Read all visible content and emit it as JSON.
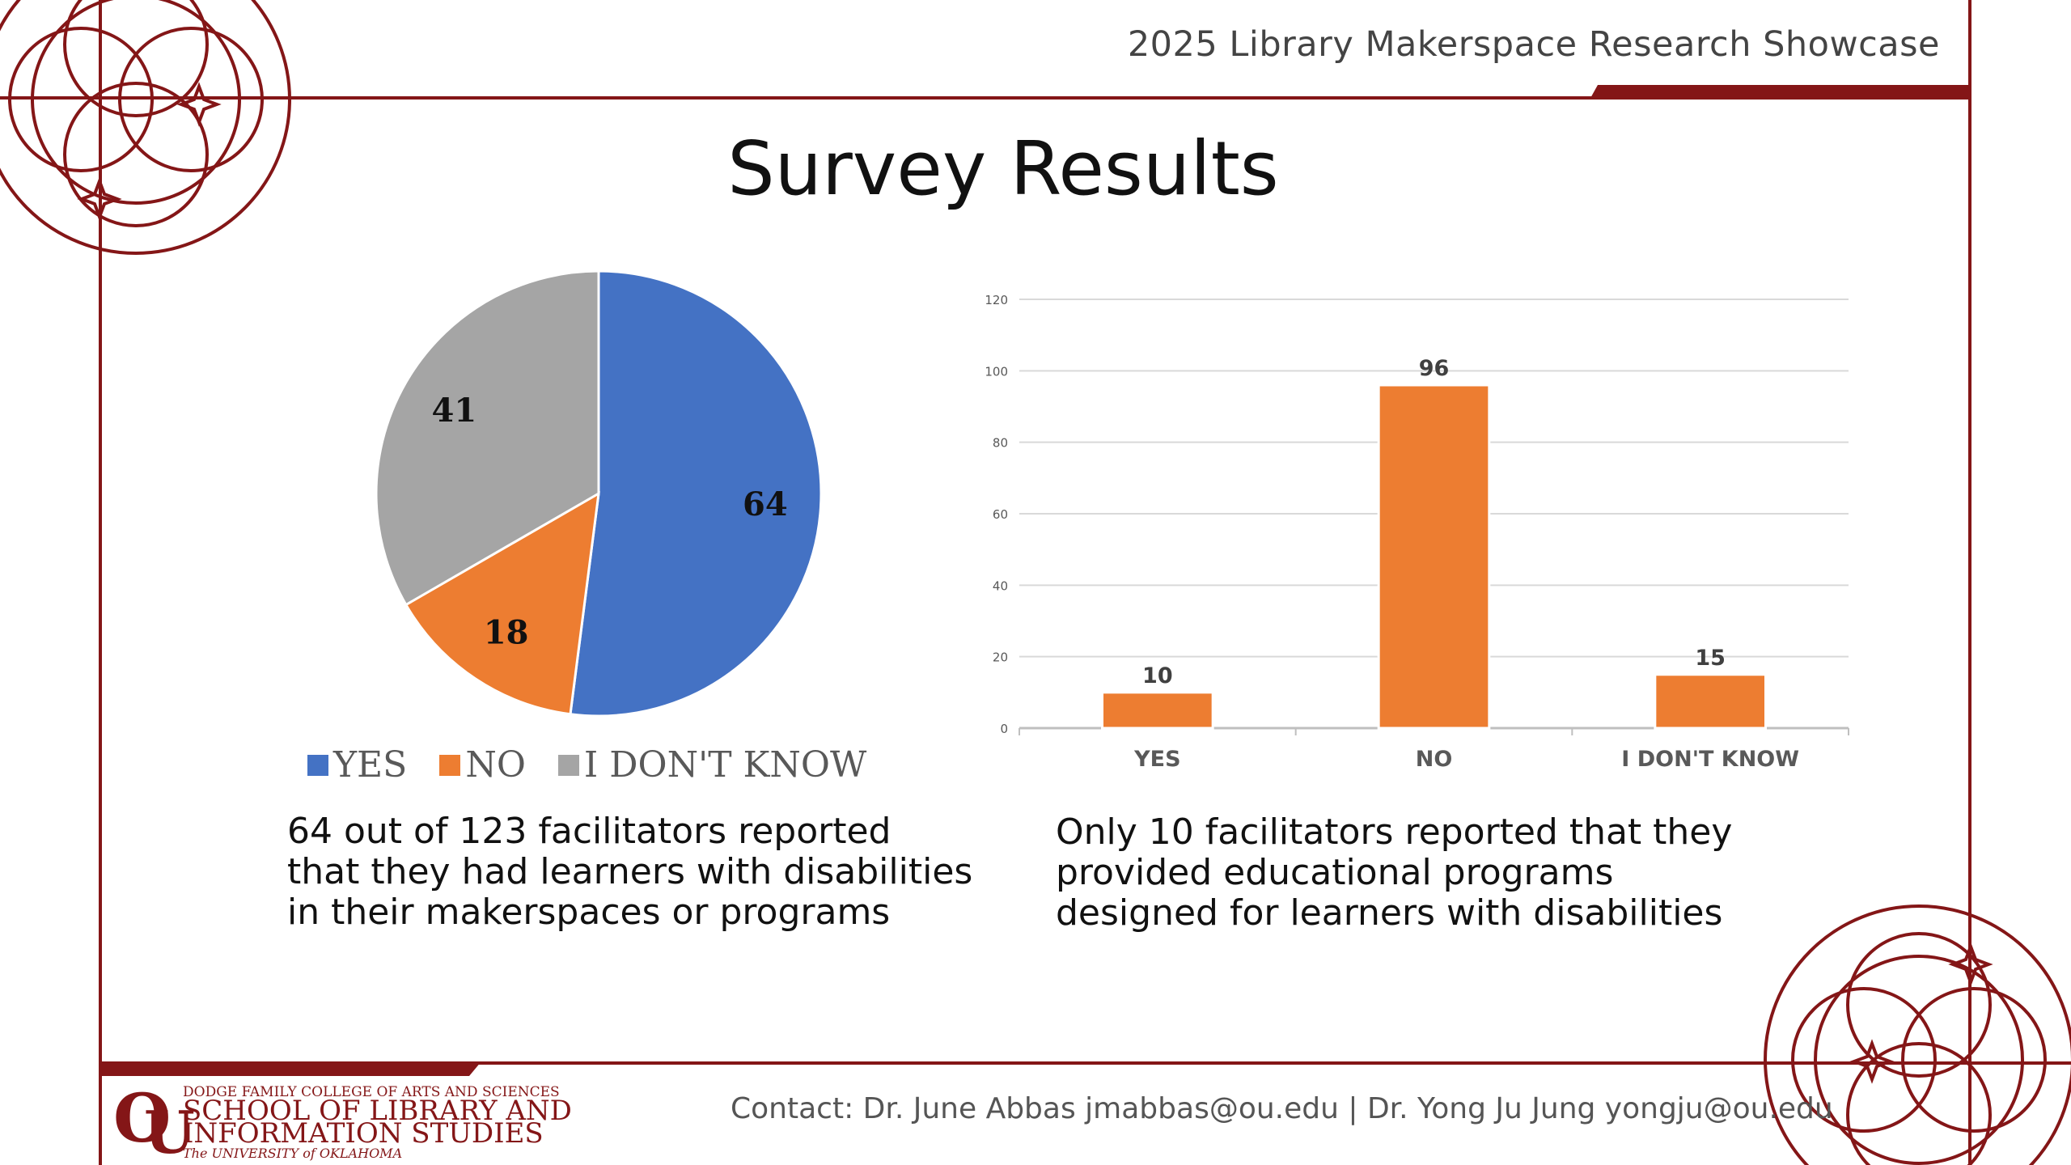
{
  "header": {
    "title": "2025 Library Makerspace Research Showcase"
  },
  "slide": {
    "title": "Survey Results"
  },
  "colors": {
    "crimson": "#841617",
    "blue": "#4472C4",
    "orange": "#ED7D31",
    "gray": "#A5A5A5",
    "gridline": "#D9D9D9"
  },
  "chart_data": [
    {
      "type": "pie",
      "categories": [
        "YES",
        "NO",
        "I DON'T KNOW"
      ],
      "values": [
        64,
        18,
        41
      ],
      "colors": [
        "#4472C4",
        "#ED7D31",
        "#A5A5A5"
      ],
      "legend": "bottom",
      "data_labels": true
    },
    {
      "type": "bar",
      "categories": [
        "YES",
        "NO",
        "I DON'T KNOW"
      ],
      "values": [
        10,
        96,
        15
      ],
      "ylim": [
        0,
        120
      ],
      "yticks": [
        0,
        20,
        40,
        60,
        80,
        100,
        120
      ],
      "color": "#ED7D31",
      "grid": true,
      "data_labels": true
    }
  ],
  "captions": {
    "pie": [
      "64 out of 123 facilitators reported",
      "that they had learners with disabilities",
      "in their makerspaces or programs"
    ],
    "bar": [
      "Only 10 facilitators reported that they",
      "provided educational programs",
      "designed for learners with disabilities"
    ]
  },
  "footer": {
    "logo": {
      "line1": "DODGE FAMILY COLLEGE OF ARTS AND SCIENCES",
      "line2": "SCHOOL OF LIBRARY AND",
      "line3": "INFORMATION STUDIES",
      "line4": "The UNIVERSITY of OKLAHOMA"
    },
    "contact": "Contact: Dr. June Abbas  jmabbas@ou.edu | Dr. Yong Ju Jung yongju@ou.edu"
  }
}
